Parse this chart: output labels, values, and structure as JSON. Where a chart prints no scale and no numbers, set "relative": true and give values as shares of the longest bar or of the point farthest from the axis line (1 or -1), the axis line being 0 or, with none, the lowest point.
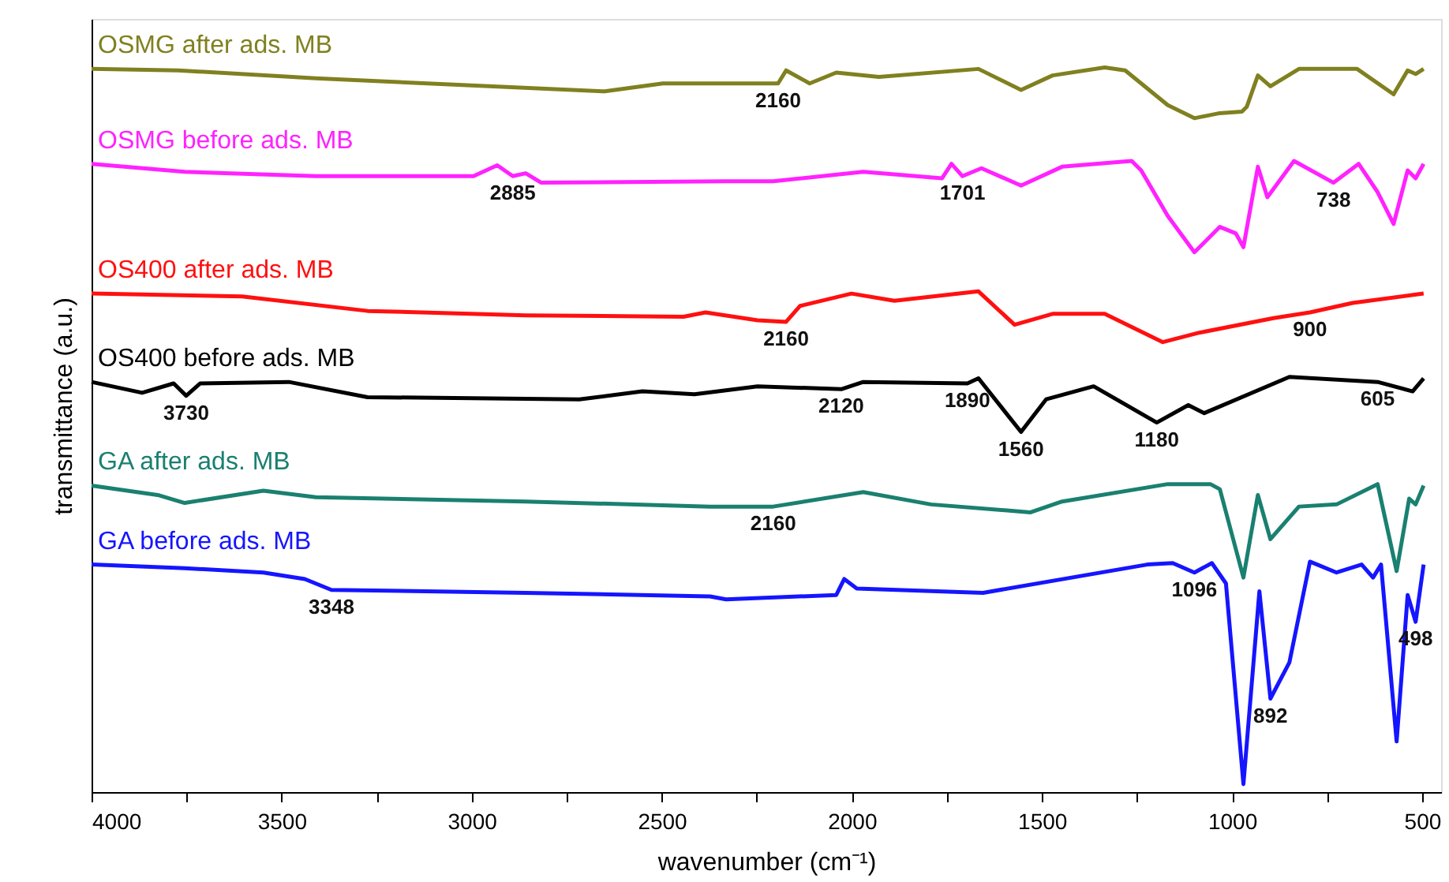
{
  "chart_data": {
    "type": "line",
    "relative": true,
    "xlabel": "wavenumber (cm⁻¹)",
    "ylabel": "transmittance (a.u.)",
    "xlim": [
      4000,
      450
    ],
    "xticks": [
      4000,
      {
        "value": 3750,
        "label": null
      },
      3500,
      {
        "value": 3250,
        "label": null
      },
      3000,
      {
        "value": 2750,
        "label": null
      },
      2500,
      {
        "value": 2250,
        "label": null
      },
      2000,
      {
        "value": 1750,
        "label": null
      },
      1500,
      {
        "value": 1250,
        "label": null
      },
      1000,
      {
        "value": 750,
        "label": null
      },
      500
    ],
    "tick_labels": "x",
    "grid": false,
    "legend": false,
    "marker": "none",
    "line_style": "solid",
    "series": [
      {
        "name": "OSMG after ads. MB",
        "color": "#808020",
        "x": [
          4000,
          3772,
          3410,
          2650,
          2497,
          2414,
          2194,
          2173,
          2111,
          2041,
          1929,
          1667,
          1555,
          1472,
          1335,
          1281,
          1169,
          1099,
          1032,
          974,
          961,
          932,
          899,
          824,
          671,
          575,
          538,
          517,
          496
        ],
        "values": [
          0.998,
          0.996,
          0.985,
          0.967,
          0.978,
          0.978,
          0.978,
          0.996,
          0.978,
          0.993,
          0.987,
          0.998,
          0.969,
          0.989,
          1.0,
          0.996,
          0.948,
          0.93,
          0.937,
          0.939,
          0.946,
          0.989,
          0.974,
          0.998,
          0.998,
          0.963,
          0.996,
          0.991,
          0.998
        ]
      },
      {
        "name": "OSMG before ads. MB",
        "color": "#ff22ff",
        "x": [
          4000,
          3755,
          3410,
          2995,
          2933,
          2892,
          2858,
          2817,
          2331,
          2207,
          1970,
          1763,
          1738,
          1709,
          1659,
          1555,
          1447,
          1264,
          1239,
          1169,
          1099,
          1032,
          990,
          970,
          932,
          907,
          837,
          733,
          667,
          617,
          575,
          538,
          517,
          496
        ],
        "values": [
          0.867,
          0.856,
          0.85,
          0.85,
          0.865,
          0.85,
          0.854,
          0.841,
          0.843,
          0.843,
          0.856,
          0.847,
          0.867,
          0.85,
          0.861,
          0.837,
          0.863,
          0.871,
          0.858,
          0.795,
          0.745,
          0.78,
          0.771,
          0.752,
          0.863,
          0.821,
          0.871,
          0.841,
          0.867,
          0.828,
          0.784,
          0.858,
          0.847,
          0.867
        ]
      },
      {
        "name": "OS400 after ads. MB",
        "color": "#ff1010",
        "x": [
          4000,
          3604,
          3274,
          2858,
          2443,
          2385,
          2248,
          2173,
          2136,
          2001,
          1888,
          1667,
          1572,
          1472,
          1335,
          1182,
          1086,
          891,
          795,
          683,
          496
        ],
        "values": [
          0.688,
          0.684,
          0.664,
          0.658,
          0.656,
          0.662,
          0.651,
          0.649,
          0.671,
          0.688,
          0.678,
          0.691,
          0.645,
          0.66,
          0.66,
          0.621,
          0.634,
          0.654,
          0.662,
          0.675,
          0.688
        ]
      },
      {
        "name": "OS400 before ads. MB",
        "color": "#000000",
        "x": [
          4000,
          3867,
          3784,
          3751,
          3714,
          3481,
          3274,
          2717,
          2551,
          2414,
          2248,
          2028,
          1970,
          1696,
          1667,
          1555,
          1489,
          1364,
          1198,
          1115,
          1073,
          849,
          617,
          525,
          496
        ],
        "values": [
          0.566,
          0.551,
          0.564,
          0.547,
          0.564,
          0.566,
          0.545,
          0.542,
          0.553,
          0.549,
          0.56,
          0.556,
          0.566,
          0.564,
          0.571,
          0.497,
          0.542,
          0.56,
          0.51,
          0.534,
          0.523,
          0.573,
          0.566,
          0.553,
          0.571
        ]
      },
      {
        "name": "GA after ads. MB",
        "color": "#1a8070",
        "x": [
          4000,
          3826,
          3755,
          3548,
          3410,
          2858,
          2373,
          2207,
          1970,
          1792,
          1530,
          1447,
          1169,
          1057,
          1032,
          970,
          932,
          899,
          824,
          725,
          617,
          567,
          534,
          517,
          496
        ],
        "values": [
          0.423,
          0.41,
          0.399,
          0.416,
          0.407,
          0.401,
          0.394,
          0.394,
          0.414,
          0.397,
          0.386,
          0.401,
          0.425,
          0.425,
          0.418,
          0.296,
          0.41,
          0.349,
          0.394,
          0.397,
          0.425,
          0.305,
          0.405,
          0.397,
          0.423
        ]
      },
      {
        "name": "GA before ads. MB",
        "color": "#1515ff",
        "x": [
          4000,
          3755,
          3548,
          3439,
          3369,
          2858,
          2373,
          2331,
          2041,
          2020,
          1987,
          1655,
          1223,
          1156,
          1099,
          1053,
          1016,
          970,
          928,
          899,
          849,
          795,
          725,
          659,
          629,
          608,
          567,
          538,
          517,
          496
        ],
        "values": [
          0.314,
          0.309,
          0.303,
          0.294,
          0.279,
          0.275,
          0.27,
          0.266,
          0.272,
          0.294,
          0.281,
          0.275,
          0.314,
          0.316,
          0.303,
          0.316,
          0.288,
          0.011,
          0.277,
          0.129,
          0.179,
          0.318,
          0.303,
          0.314,
          0.296,
          0.314,
          0.07,
          0.272,
          0.235,
          0.314
        ]
      }
    ],
    "annotations": [
      {
        "text": "2160",
        "x": 2194,
        "y": 0.978
      },
      {
        "text": "2885",
        "x": 2892,
        "y": 0.85
      },
      {
        "text": "1701",
        "x": 1709,
        "y": 0.85
      },
      {
        "text": "738",
        "x": 733,
        "y": 0.841
      },
      {
        "text": "2160",
        "x": 2173,
        "y": 0.649
      },
      {
        "text": "900",
        "x": 795,
        "y": 0.662
      },
      {
        "text": "3730",
        "x": 3751,
        "y": 0.547
      },
      {
        "text": "2120",
        "x": 2028,
        "y": 0.556
      },
      {
        "text": "1890",
        "x": 1696,
        "y": 0.564
      },
      {
        "text": "1560",
        "x": 1555,
        "y": 0.497
      },
      {
        "text": "1180",
        "x": 1198,
        "y": 0.51
      },
      {
        "text": "605",
        "x": 617,
        "y": 0.566
      },
      {
        "text": "2160",
        "x": 2207,
        "y": 0.394
      },
      {
        "text": "3348",
        "x": 3369,
        "y": 0.279
      },
      {
        "text": "1096",
        "x": 1099,
        "y": 0.303
      },
      {
        "text": "892",
        "x": 899,
        "y": 0.129
      },
      {
        "text": "498",
        "x": 517,
        "y": 0.235
      }
    ]
  }
}
